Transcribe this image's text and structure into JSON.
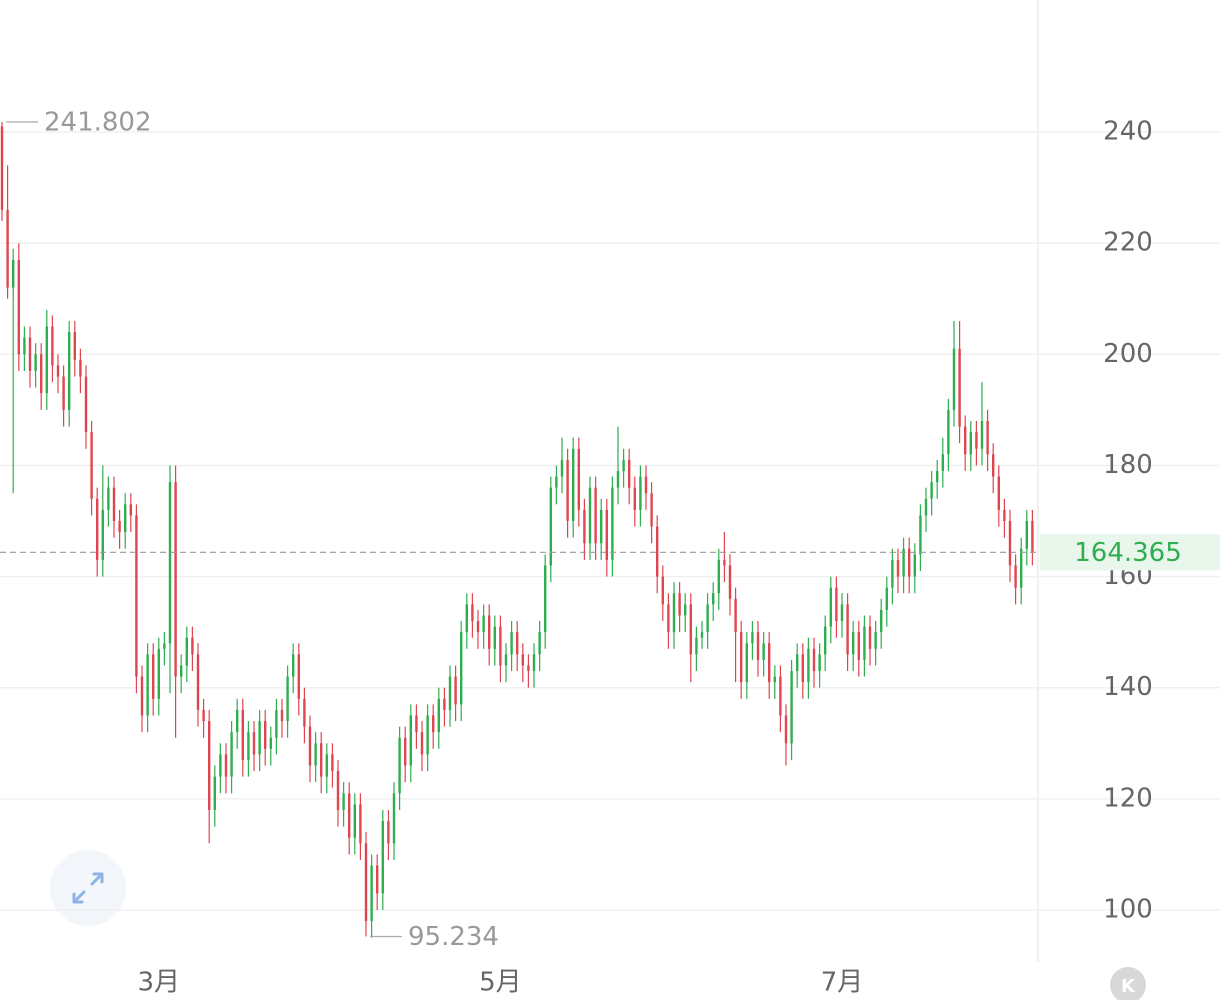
{
  "chart_data": {
    "type": "ohlc",
    "up_color": "#2fae4f",
    "down_color": "#e0454f",
    "ylim": [
      91,
      263.76
    ],
    "yticks": [
      100,
      120,
      140,
      160,
      180,
      200,
      220,
      240
    ],
    "grid": true,
    "xticks": [
      {
        "value": 28,
        "label": "3月"
      },
      {
        "value": 89,
        "label": "5月"
      },
      {
        "value": 150,
        "label": "7月"
      }
    ],
    "high_marker": 241.802,
    "low_marker": 95.234,
    "last_price": 164.365,
    "candles": [
      [
        241,
        241.802,
        224,
        226
      ],
      [
        226,
        234,
        210,
        212
      ],
      [
        212,
        219,
        175,
        217
      ],
      [
        217,
        220,
        197,
        200
      ],
      [
        200,
        205,
        197,
        203
      ],
      [
        203,
        205,
        194,
        197
      ],
      [
        197,
        202,
        194,
        200
      ],
      [
        200,
        202,
        190,
        193
      ],
      [
        193,
        208,
        190,
        205
      ],
      [
        205,
        207,
        195,
        198
      ],
      [
        198,
        200,
        193,
        196
      ],
      [
        196,
        198,
        187,
        190
      ],
      [
        190,
        206,
        187,
        204
      ],
      [
        204,
        206,
        196,
        199
      ],
      [
        199,
        201,
        193,
        196
      ],
      [
        196,
        198,
        183,
        186
      ],
      [
        186,
        188,
        171,
        174
      ],
      [
        174,
        176,
        160,
        163
      ],
      [
        163,
        180,
        160,
        172
      ],
      [
        172,
        178,
        169,
        176
      ],
      [
        176,
        178,
        167,
        170
      ],
      [
        170,
        172,
        165,
        168
      ],
      [
        168,
        175,
        165,
        173
      ],
      [
        173,
        175,
        168,
        171
      ],
      [
        171,
        173,
        139,
        142
      ],
      [
        142,
        144,
        132,
        135
      ],
      [
        135,
        148,
        132,
        146
      ],
      [
        146,
        148,
        135,
        138
      ],
      [
        138,
        149,
        135,
        147
      ],
      [
        147,
        150,
        144,
        148
      ],
      [
        148,
        180,
        139,
        177
      ],
      [
        177,
        180,
        131,
        142
      ],
      [
        142,
        146,
        139,
        144
      ],
      [
        144,
        151,
        141,
        149
      ],
      [
        149,
        151,
        143,
        146
      ],
      [
        146,
        148,
        133,
        136
      ],
      [
        136,
        138,
        131,
        134
      ],
      [
        134,
        136,
        112,
        118
      ],
      [
        118,
        126,
        115,
        124
      ],
      [
        124,
        130,
        121,
        128
      ],
      [
        128,
        130,
        121,
        124
      ],
      [
        124,
        134,
        121,
        132
      ],
      [
        132,
        138,
        129,
        136
      ],
      [
        136,
        138,
        124,
        127
      ],
      [
        127,
        134,
        124,
        132
      ],
      [
        132,
        134,
        125,
        128
      ],
      [
        128,
        136,
        125,
        134
      ],
      [
        134,
        136,
        126,
        129
      ],
      [
        129,
        133,
        126,
        131
      ],
      [
        131,
        138,
        128,
        136
      ],
      [
        136,
        138,
        131,
        134
      ],
      [
        134,
        144,
        131,
        142
      ],
      [
        142,
        148,
        139,
        146
      ],
      [
        146,
        148,
        135,
        138
      ],
      [
        138,
        140,
        130,
        133
      ],
      [
        133,
        135,
        123,
        126
      ],
      [
        126,
        132,
        123,
        130
      ],
      [
        130,
        132,
        121,
        124
      ],
      [
        124,
        130,
        121,
        128
      ],
      [
        128,
        130,
        122,
        125
      ],
      [
        125,
        127,
        115,
        118
      ],
      [
        118,
        123,
        115,
        121
      ],
      [
        121,
        123,
        110,
        113
      ],
      [
        113,
        121,
        110,
        119
      ],
      [
        119,
        121,
        109,
        112
      ],
      [
        112,
        114,
        95.234,
        98
      ],
      [
        98,
        110,
        95,
        108
      ],
      [
        108,
        110,
        100,
        103
      ],
      [
        103,
        118,
        100,
        116
      ],
      [
        116,
        118,
        109,
        112
      ],
      [
        112,
        123,
        109,
        121
      ],
      [
        121,
        133,
        118,
        131
      ],
      [
        131,
        133,
        123,
        126
      ],
      [
        126,
        137,
        123,
        135
      ],
      [
        135,
        137,
        129,
        132
      ],
      [
        132,
        134,
        125,
        128
      ],
      [
        128,
        137,
        125,
        135
      ],
      [
        135,
        137,
        129,
        132
      ],
      [
        132,
        140,
        129,
        138
      ],
      [
        138,
        140,
        133,
        136
      ],
      [
        136,
        144,
        133,
        142
      ],
      [
        142,
        144,
        134,
        137
      ],
      [
        137,
        152,
        134,
        150
      ],
      [
        150,
        157,
        147,
        155
      ],
      [
        155,
        157,
        149,
        152
      ],
      [
        152,
        154,
        147,
        150
      ],
      [
        150,
        155,
        147,
        153
      ],
      [
        153,
        155,
        144,
        147
      ],
      [
        147,
        153,
        144,
        151
      ],
      [
        151,
        153,
        141,
        144
      ],
      [
        144,
        148,
        141,
        146
      ],
      [
        146,
        152,
        143,
        150
      ],
      [
        150,
        152,
        143,
        146
      ],
      [
        146,
        148,
        141,
        144
      ],
      [
        144,
        146,
        140,
        143
      ],
      [
        143,
        148,
        140,
        146
      ],
      [
        146,
        152,
        143,
        150
      ],
      [
        150,
        164,
        147,
        162
      ],
      [
        162,
        178,
        159,
        176
      ],
      [
        176,
        180,
        173,
        178
      ],
      [
        178,
        185,
        175,
        181
      ],
      [
        181,
        183,
        167,
        170
      ],
      [
        170,
        185,
        167,
        183
      ],
      [
        183,
        185,
        169,
        172
      ],
      [
        172,
        174,
        163,
        166
      ],
      [
        166,
        178,
        163,
        176
      ],
      [
        176,
        178,
        163,
        166
      ],
      [
        166,
        174,
        163,
        172
      ],
      [
        172,
        174,
        160,
        163
      ],
      [
        163,
        178,
        160,
        176
      ],
      [
        176,
        187,
        173,
        179
      ],
      [
        179,
        183,
        176,
        181
      ],
      [
        181,
        183,
        173,
        176
      ],
      [
        176,
        178,
        169,
        172
      ],
      [
        172,
        180,
        169,
        178
      ],
      [
        178,
        180,
        172,
        175
      ],
      [
        175,
        177,
        166,
        169
      ],
      [
        169,
        171,
        157,
        160
      ],
      [
        160,
        162,
        152,
        155
      ],
      [
        155,
        157,
        147,
        150
      ],
      [
        150,
        159,
        147,
        157
      ],
      [
        157,
        159,
        150,
        153
      ],
      [
        153,
        157,
        150,
        155
      ],
      [
        155,
        157,
        141,
        146
      ],
      [
        146,
        151,
        143,
        149
      ],
      [
        149,
        152,
        147,
        150
      ],
      [
        150,
        157,
        147,
        155
      ],
      [
        155,
        159,
        152,
        157
      ],
      [
        157,
        165,
        154,
        163
      ],
      [
        163,
        168,
        159,
        162
      ],
      [
        162,
        164,
        153,
        156
      ],
      [
        156,
        158,
        141,
        150
      ],
      [
        150,
        152,
        138,
        141
      ],
      [
        141,
        150,
        138,
        148
      ],
      [
        148,
        152,
        145,
        150
      ],
      [
        150,
        152,
        142,
        145
      ],
      [
        145,
        150,
        142,
        148
      ],
      [
        148,
        150,
        138,
        141
      ],
      [
        141,
        144,
        138,
        142
      ],
      [
        142,
        144,
        132,
        135
      ],
      [
        135,
        137,
        126,
        130
      ],
      [
        130,
        145,
        127,
        143
      ],
      [
        143,
        148,
        140,
        146
      ],
      [
        146,
        148,
        138,
        141
      ],
      [
        141,
        149,
        138,
        147
      ],
      [
        147,
        149,
        140,
        143
      ],
      [
        143,
        148,
        140,
        146
      ],
      [
        146,
        153,
        143,
        151
      ],
      [
        151,
        160,
        148,
        158
      ],
      [
        158,
        160,
        149,
        152
      ],
      [
        152,
        157,
        149,
        155
      ],
      [
        155,
        157,
        143,
        146
      ],
      [
        146,
        152,
        143,
        150
      ],
      [
        150,
        152,
        142,
        145
      ],
      [
        145,
        153,
        142,
        151
      ],
      [
        151,
        153,
        144,
        147
      ],
      [
        147,
        152,
        144,
        150
      ],
      [
        150,
        156,
        147,
        154
      ],
      [
        154,
        160,
        151,
        158
      ],
      [
        158,
        165,
        155,
        163
      ],
      [
        163,
        165,
        157,
        160
      ],
      [
        160,
        167,
        157,
        165
      ],
      [
        165,
        167,
        157,
        160
      ],
      [
        160,
        166,
        157,
        164
      ],
      [
        164,
        173,
        161,
        171
      ],
      [
        171,
        176,
        168,
        174
      ],
      [
        174,
        179,
        171,
        177
      ],
      [
        177,
        181,
        174,
        179
      ],
      [
        179,
        185,
        176,
        182
      ],
      [
        182,
        192,
        179,
        190
      ],
      [
        190,
        206,
        187,
        201
      ],
      [
        201,
        206,
        184,
        187
      ],
      [
        187,
        189,
        179,
        182
      ],
      [
        182,
        188,
        179,
        186
      ],
      [
        186,
        188,
        180,
        183
      ],
      [
        183,
        195,
        180,
        188
      ],
      [
        188,
        190,
        179,
        182
      ],
      [
        182,
        184,
        175,
        178
      ],
      [
        178,
        180,
        169,
        172
      ],
      [
        172,
        174,
        167,
        170
      ],
      [
        170,
        172,
        159,
        162
      ],
      [
        162,
        164,
        155,
        158
      ],
      [
        158,
        167,
        155,
        165
      ],
      [
        165,
        172,
        162,
        170
      ],
      [
        170,
        172,
        162,
        164.365
      ]
    ]
  }
}
